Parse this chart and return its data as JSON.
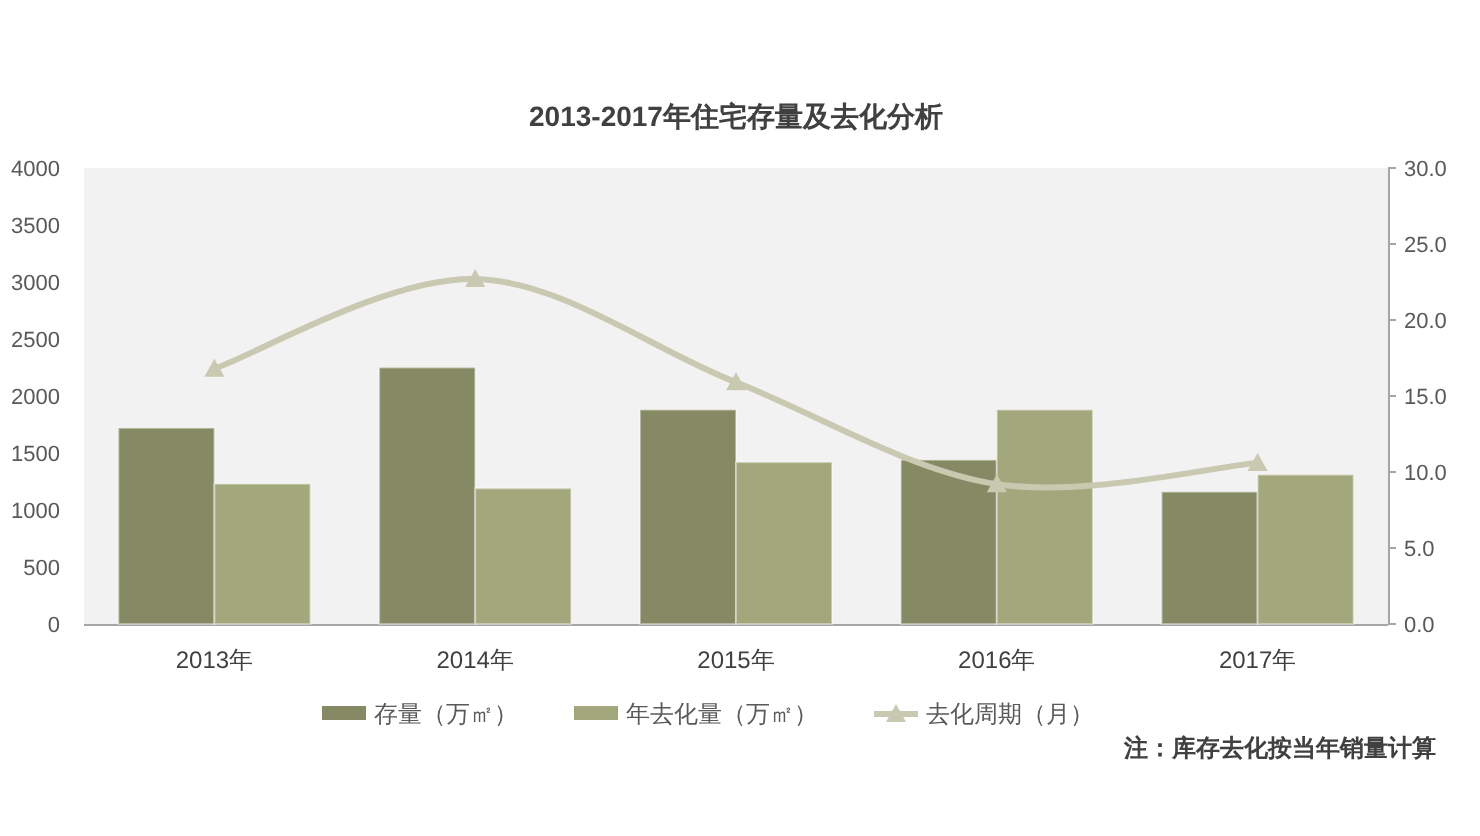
{
  "chart_data": {
    "type": "bar",
    "title": "2013-2017年住宅存量及去化分析",
    "categories": [
      "2013年",
      "2014年",
      "2015年",
      "2016年",
      "2017年"
    ],
    "series": [
      {
        "name": "存量（万㎡）",
        "color": "#858a64",
        "values": [
          1720,
          2250,
          1880,
          1440,
          1160
        ]
      },
      {
        "name": "年去化量（万㎡）",
        "color": "#a3a87c",
        "values": [
          1230,
          1190,
          1420,
          1880,
          1310
        ]
      },
      {
        "name": "去化周期（月）",
        "type": "line",
        "axis": "y2",
        "color": "#c8c9b0",
        "marker": "triangle",
        "values": [
          16.8,
          22.7,
          15.9,
          9.2,
          10.6
        ]
      }
    ],
    "ylim": [
      0,
      4000
    ],
    "yticks": [
      0,
      500,
      1000,
      1500,
      2000,
      2500,
      3000,
      3500,
      4000
    ],
    "y2lim": [
      0,
      30
    ],
    "y2ticks": [
      {
        "value": 0,
        "label": "0.0"
      },
      {
        "value": 5,
        "label": "5.0"
      },
      {
        "value": 10,
        "label": "10.0"
      },
      {
        "value": 15,
        "label": "15.0"
      },
      {
        "value": 20,
        "label": "20.0"
      },
      {
        "value": 25,
        "label": "25.0"
      },
      {
        "value": 30,
        "label": "30.0"
      }
    ],
    "legend": "bottom",
    "annotations": [
      "注：库存去化按当年销量计算"
    ]
  }
}
